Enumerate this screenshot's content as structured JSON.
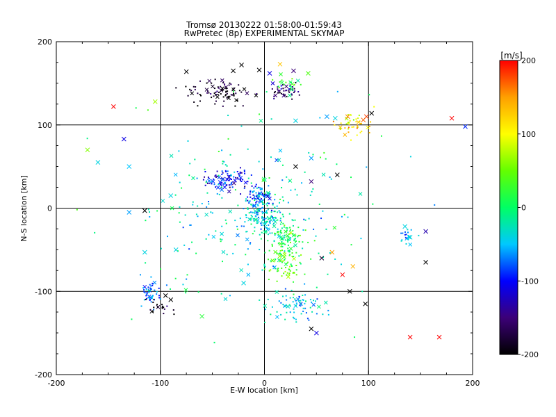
{
  "chart_data": {
    "type": "scatter",
    "title": "Tromsø 20130222 01:58:00-01:59:43",
    "subtitle": "RwPretec (8p) EXPERIMENTAL SKYMAP",
    "xlabel": "E-W location [km]",
    "ylabel": "N-S location [km]",
    "xlim": [
      -200,
      200
    ],
    "ylim": [
      -200,
      200
    ],
    "xticks": [
      "-200",
      "-100",
      "0",
      "100",
      "200"
    ],
    "yticks": [
      "-200",
      "-100",
      "0",
      "100",
      "200"
    ],
    "grid": true,
    "colorbar": {
      "label": "[m/s]",
      "range": [
        -200,
        200
      ],
      "ticks": [
        "200",
        "100",
        "0",
        "-100",
        "-200"
      ],
      "colormap": [
        "#000000",
        "#3c0078",
        "#0000ff",
        "#00c8ff",
        "#00ff64",
        "#64ff00",
        "#ffff00",
        "#ffa000",
        "#ff0000"
      ]
    },
    "clusters": [
      {
        "x": -45,
        "y": 140,
        "sx": 26,
        "sy": 12,
        "v": -190,
        "n": 90
      },
      {
        "x": 20,
        "y": 140,
        "sx": 12,
        "sy": 8,
        "v": -160,
        "n": 45
      },
      {
        "x": 22,
        "y": 150,
        "sx": 10,
        "sy": 8,
        "v": 20,
        "n": 20
      },
      {
        "x": 85,
        "y": 100,
        "sx": 14,
        "sy": 12,
        "v": 110,
        "n": 45
      },
      {
        "x": -35,
        "y": 35,
        "sx": 18,
        "sy": 12,
        "v": -110,
        "n": 90
      },
      {
        "x": -5,
        "y": 15,
        "sx": 10,
        "sy": 10,
        "v": -85,
        "n": 70
      },
      {
        "x": 0,
        "y": -10,
        "sx": 15,
        "sy": 18,
        "v": -40,
        "n": 120
      },
      {
        "x": 20,
        "y": -40,
        "sx": 15,
        "sy": 22,
        "v": 10,
        "n": 110
      },
      {
        "x": 20,
        "y": -70,
        "sx": 15,
        "sy": 15,
        "v": 40,
        "n": 60
      },
      {
        "x": 30,
        "y": -115,
        "sx": 20,
        "sy": 15,
        "v": -40,
        "n": 80
      },
      {
        "x": -110,
        "y": -100,
        "sx": 8,
        "sy": 15,
        "v": -70,
        "n": 50
      },
      {
        "x": -100,
        "y": -120,
        "sx": 12,
        "sy": 10,
        "v": -190,
        "n": 20
      },
      {
        "x": 135,
        "y": -35,
        "sx": 8,
        "sy": 10,
        "v": -60,
        "n": 18
      },
      {
        "x": -10,
        "y": 0,
        "sx": 80,
        "sy": 80,
        "v": -30,
        "n": 180
      },
      {
        "x": 0,
        "y": 0,
        "sx": 120,
        "sy": 120,
        "v": 0,
        "n": 80
      }
    ],
    "markers": [
      {
        "x": -145,
        "y": 122,
        "v": 200
      },
      {
        "x": -105,
        "y": 128,
        "v": 70
      },
      {
        "x": -135,
        "y": 83,
        "v": -110
      },
      {
        "x": -160,
        "y": 55,
        "v": -40
      },
      {
        "x": -130,
        "y": 50,
        "v": -50
      },
      {
        "x": -115,
        "y": -3,
        "v": -200
      },
      {
        "x": -130,
        "y": -5,
        "v": -60
      },
      {
        "x": -115,
        "y": -53,
        "v": -40
      },
      {
        "x": -60,
        "y": -130,
        "v": 20
      },
      {
        "x": -90,
        "y": -110,
        "v": -200
      },
      {
        "x": -95,
        "y": -105,
        "v": -200
      },
      {
        "x": -75,
        "y": 164,
        "v": -200
      },
      {
        "x": -30,
        "y": 165,
        "v": -200
      },
      {
        "x": -22,
        "y": 172,
        "v": -200
      },
      {
        "x": -5,
        "y": 166,
        "v": -200
      },
      {
        "x": 5,
        "y": 162,
        "v": -110
      },
      {
        "x": 28,
        "y": 165,
        "v": -150
      },
      {
        "x": 42,
        "y": 162,
        "v": 40
      },
      {
        "x": 15,
        "y": 173,
        "v": 130
      },
      {
        "x": 30,
        "y": 105,
        "v": -40
      },
      {
        "x": 60,
        "y": 110,
        "v": -60
      },
      {
        "x": 68,
        "y": 108,
        "v": -40
      },
      {
        "x": 80,
        "y": 110,
        "v": 160
      },
      {
        "x": 98,
        "y": 110,
        "v": 180
      },
      {
        "x": 103,
        "y": 114,
        "v": -200
      },
      {
        "x": 95,
        "y": 106,
        "v": 170
      },
      {
        "x": 180,
        "y": 108,
        "v": 200
      },
      {
        "x": 193,
        "y": 98,
        "v": -90
      },
      {
        "x": 30,
        "y": 50,
        "v": -200
      },
      {
        "x": 45,
        "y": 32,
        "v": -150
      },
      {
        "x": 70,
        "y": 40,
        "v": -200
      },
      {
        "x": 55,
        "y": -60,
        "v": -180
      },
      {
        "x": 65,
        "y": -53,
        "v": 150
      },
      {
        "x": 85,
        "y": -70,
        "v": 140
      },
      {
        "x": 75,
        "y": -80,
        "v": 200
      },
      {
        "x": 82,
        "y": -100,
        "v": -200
      },
      {
        "x": 97,
        "y": -115,
        "v": -200
      },
      {
        "x": 45,
        "y": -145,
        "v": -200
      },
      {
        "x": 50,
        "y": -150,
        "v": -110
      },
      {
        "x": 140,
        "y": -155,
        "v": 200
      },
      {
        "x": 168,
        "y": -155,
        "v": 200
      },
      {
        "x": 155,
        "y": -28,
        "v": -130
      },
      {
        "x": 155,
        "y": -65,
        "v": -200
      },
      {
        "x": 140,
        "y": -35,
        "v": -40
      },
      {
        "x": 135,
        "y": -22,
        "v": -40
      },
      {
        "x": -170,
        "y": 70,
        "v": 60
      },
      {
        "x": -90,
        "y": 15,
        "v": -40
      },
      {
        "x": -85,
        "y": -50,
        "v": -40
      },
      {
        "x": -20,
        "y": -90,
        "v": -40
      },
      {
        "x": 45,
        "y": 60,
        "v": -60
      }
    ]
  }
}
